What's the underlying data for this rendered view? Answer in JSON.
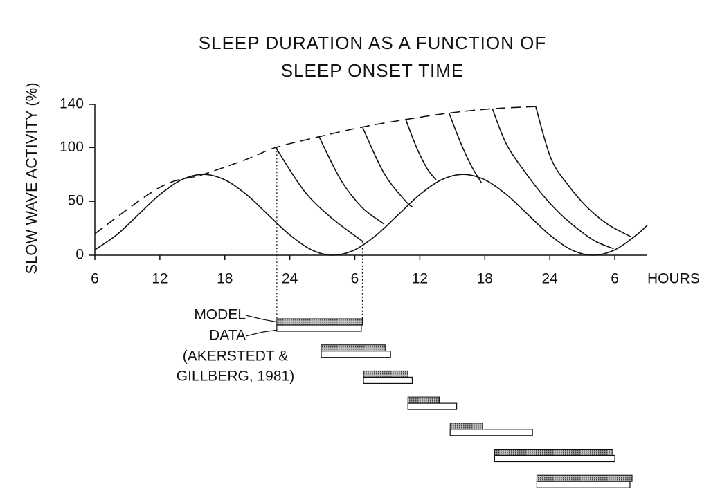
{
  "chart_data": {
    "type": "line",
    "title": [
      "SLEEP  DURATION  AS  A  FUNCTION  OF",
      "SLEEP  ONSET  TIME"
    ],
    "y_label": "SLOW  WAVE  ACTIVITY  (%)",
    "x_label": "HOURS",
    "xlim": [
      6,
      57
    ],
    "ylim": [
      0,
      140
    ],
    "xticks": [
      6,
      12,
      18,
      24,
      {
        "value": 30,
        "label": "6"
      },
      {
        "value": 36,
        "label": "12"
      },
      {
        "value": 42,
        "label": "18"
      },
      {
        "value": 48,
        "label": "24"
      },
      {
        "value": 54,
        "label": "6"
      }
    ],
    "yticks": [
      0,
      50,
      100,
      140
    ],
    "grid": false,
    "series": [
      {
        "color": "#111111",
        "dash": false,
        "x": [
          6,
          8,
          10,
          12,
          14,
          16,
          18,
          20,
          22,
          24,
          26,
          28,
          30,
          32,
          34,
          36,
          38,
          40,
          42,
          44,
          46,
          48,
          50,
          52,
          54,
          56,
          57
        ],
        "values": [
          5,
          18.75,
          37.5,
          56.25,
          70,
          75,
          70,
          56.25,
          37.5,
          18.75,
          5,
          0,
          5,
          18.75,
          37.5,
          56.25,
          70,
          75,
          70,
          56.25,
          37.5,
          18.75,
          5,
          0,
          5,
          18.75,
          27.8
        ]
      },
      {
        "color": "#111111",
        "dash": true,
        "x": [
          6,
          12,
          16,
          20,
          22.7,
          26.7,
          30.7,
          34.7,
          38.7,
          42.7,
          46.7
        ],
        "values": [
          20,
          63,
          75,
          89,
          100,
          110,
          119,
          126,
          132,
          136,
          138
        ]
      },
      {
        "color": "#111111",
        "dash": false,
        "x": [
          22.7,
          25.3,
          27.8,
          30.7
        ],
        "values": [
          100,
          60,
          35,
          13
        ]
      },
      {
        "color": "#111111",
        "dash": false,
        "x": [
          26.7,
          28.7,
          30.7,
          32.7
        ],
        "values": [
          110,
          70,
          44,
          29
        ]
      },
      {
        "color": "#111111",
        "dash": false,
        "x": [
          30.7,
          32.7,
          34.7,
          35.3
        ],
        "values": [
          119,
          76,
          50,
          45
        ]
      },
      {
        "color": "#111111",
        "dash": false,
        "x": [
          34.7,
          35.7,
          36.7,
          37.5
        ],
        "values": [
          126,
          100,
          80,
          70
        ]
      },
      {
        "color": "#111111",
        "dash": false,
        "x": [
          38.7,
          39.7,
          40.7,
          41.7
        ],
        "values": [
          132,
          106,
          84,
          67
        ]
      },
      {
        "color": "#111111",
        "dash": false,
        "x": [
          42.7,
          44,
          45.8,
          47.5,
          49,
          50.5,
          52.2,
          53.9
        ],
        "values": [
          136,
          103,
          76,
          54,
          38,
          25,
          13,
          6
        ]
      },
      {
        "color": "#111111",
        "dash": false,
        "x": [
          46.7,
          48.1,
          49.7,
          51.4,
          53.3,
          55.5
        ],
        "values": [
          138,
          90,
          65,
          45,
          29,
          17
        ]
      }
    ],
    "annotations": [
      "MODEL",
      "DATA",
      "(AKERSTEDT &",
      "GILLBERG, 1981)"
    ],
    "sleep_periods": {
      "model_color": "#8c8c8c",
      "data_color": "#ffffff",
      "model": [
        [
          22.8,
          30.7
        ],
        [
          26.9,
          32.8
        ],
        [
          30.8,
          34.9
        ],
        [
          34.9,
          37.8
        ],
        [
          38.8,
          41.8
        ],
        [
          42.9,
          53.8
        ],
        [
          46.8,
          55.6
        ]
      ],
      "data": [
        [
          22.8,
          30.6
        ],
        [
          26.9,
          33.3
        ],
        [
          30.8,
          35.3
        ],
        [
          34.9,
          39.4
        ],
        [
          38.8,
          46.4
        ],
        [
          42.9,
          54.0
        ],
        [
          46.8,
          55.4
        ]
      ]
    }
  }
}
